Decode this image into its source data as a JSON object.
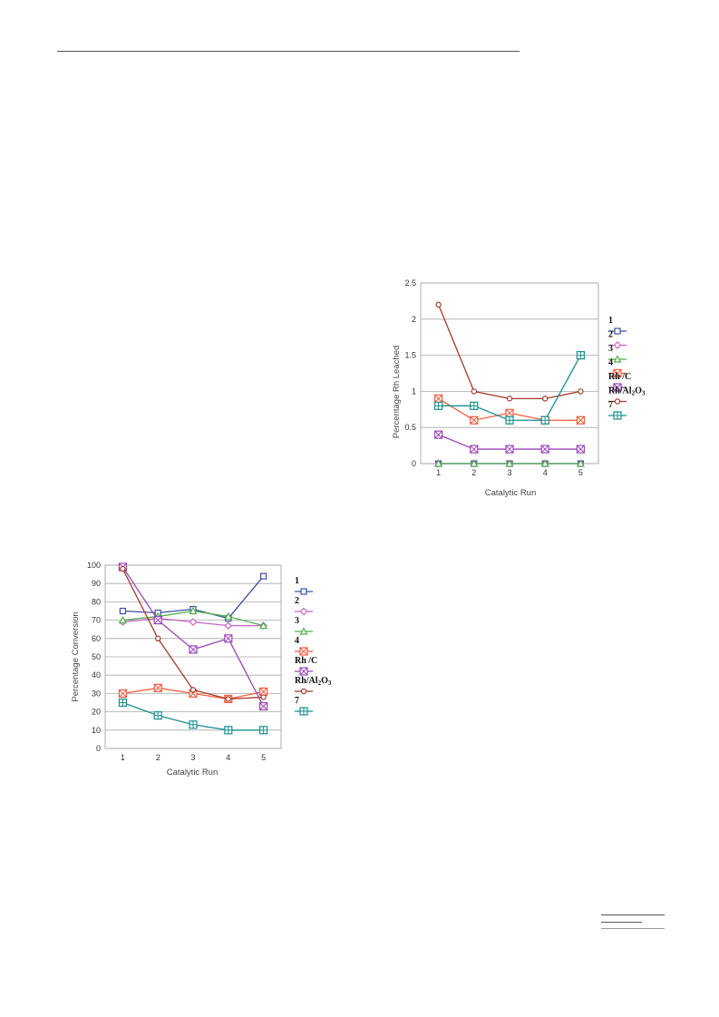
{
  "charts": {
    "conversion": {
      "yTicks": [
        "0",
        "10",
        "20",
        "30",
        "40",
        "50",
        "60",
        "70",
        "80",
        "90",
        "100"
      ],
      "xTicks": [
        "1",
        "2",
        "3",
        "4",
        "5"
      ],
      "xlabel": "Catalytic Run",
      "ylabel": "Percentage Conversion"
    },
    "leached": {
      "yTicks": [
        "0",
        "0.5",
        "1",
        "1.5",
        "2",
        "2.5"
      ],
      "xTicks": [
        "1",
        "2",
        "3",
        "4",
        "5"
      ],
      "xlabel": "Catalytic Run",
      "ylabel": "Percentage Rh Leached"
    }
  },
  "chart_data": [
    {
      "type": "line",
      "x": [
        1,
        2,
        3,
        4,
        5
      ],
      "xlabel": "Catalytic Run",
      "ylabel": "Percentage Conversion",
      "ylim": [
        0,
        100
      ],
      "grid": true,
      "legend": "right",
      "series": [
        {
          "name": "1",
          "color": "#3b4fa3",
          "marker": "square",
          "values": [
            75,
            74,
            76,
            71,
            94
          ]
        },
        {
          "name": "2",
          "color": "#c665c6",
          "marker": "diamond",
          "values": [
            69,
            71,
            69,
            67,
            67
          ]
        },
        {
          "name": "3",
          "color": "#4daf4a",
          "marker": "triangle",
          "values": [
            70,
            72,
            75,
            72,
            67
          ]
        },
        {
          "name": "4",
          "color": "#f25c3e",
          "marker": "square-x",
          "values": [
            30,
            33,
            30,
            27,
            31
          ]
        },
        {
          "name": "Rh /C",
          "color": "#9a45b8",
          "marker": "square-x",
          "values": [
            99,
            70,
            54,
            60,
            23
          ]
        },
        {
          "name": "Rh/Al2O3",
          "color": "#a3392a",
          "marker": "circle",
          "values": [
            98,
            60,
            32,
            27,
            28
          ]
        },
        {
          "name": "7",
          "color": "#1a8f8f",
          "marker": "square-plus",
          "values": [
            25,
            18,
            13,
            10,
            10
          ]
        }
      ]
    },
    {
      "type": "line",
      "x": [
        1,
        2,
        3,
        4,
        5
      ],
      "xlabel": "Catalytic Run",
      "ylabel": "Percentage Rh Leached",
      "ylim": [
        0,
        2.5
      ],
      "grid": true,
      "legend": "right",
      "series": [
        {
          "name": "1",
          "color": "#3b4fa3",
          "marker": "square",
          "values": [
            0,
            0,
            0,
            0,
            0
          ]
        },
        {
          "name": "2",
          "color": "#c665c6",
          "marker": "diamond",
          "values": [
            0,
            0,
            0,
            0,
            0
          ]
        },
        {
          "name": "3",
          "color": "#4daf4a",
          "marker": "triangle",
          "values": [
            0,
            0,
            0,
            0,
            0
          ]
        },
        {
          "name": "4",
          "color": "#f25c3e",
          "marker": "square-x",
          "values": [
            0.9,
            0.6,
            0.7,
            0.6,
            0.6
          ]
        },
        {
          "name": "Rh /C",
          "color": "#9a45b8",
          "marker": "square-x",
          "values": [
            0.4,
            0.2,
            0.2,
            0.2,
            0.2
          ]
        },
        {
          "name": "Rh/Al2O3",
          "color": "#a3392a",
          "marker": "circle",
          "values": [
            2.2,
            1.0,
            0.9,
            0.9,
            1.0
          ]
        },
        {
          "name": "7",
          "color": "#1a8f8f",
          "marker": "square-plus",
          "values": [
            0.8,
            0.8,
            0.6,
            0.6,
            1.5
          ]
        }
      ]
    }
  ]
}
